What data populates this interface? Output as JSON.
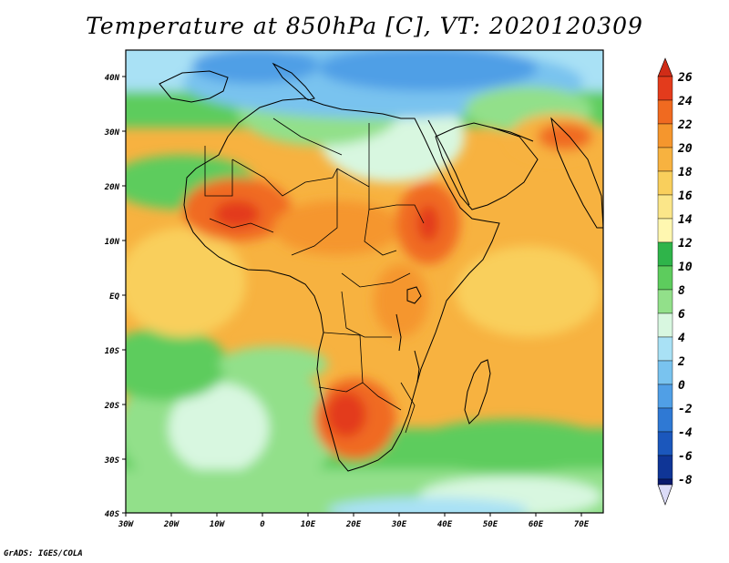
{
  "title": "Temperature at 850hPa [C], VT: 2020120309",
  "footer": "GrADS: IGES/COLA",
  "map": {
    "lon_range": [
      -30,
      75
    ],
    "lat_range": [
      -40,
      45
    ],
    "x_tick_labels": [
      "30W",
      "20W",
      "10W",
      "0",
      "10E",
      "20E",
      "30E",
      "40E",
      "50E",
      "60E",
      "70E"
    ],
    "y_tick_labels": [
      "40N",
      "30N",
      "20N",
      "10N",
      "EQ",
      "10S",
      "20S",
      "30S",
      "40S"
    ]
  },
  "colorbar": {
    "labels": [
      "26",
      "24",
      "22",
      "20",
      "18",
      "16",
      "14",
      "12",
      "10",
      "8",
      "6",
      "4",
      "2",
      "0",
      "-2",
      "-4",
      "-6",
      "-8"
    ],
    "colors": [
      "#e33b1c",
      "#f06a20",
      "#f5962d",
      "#f7b240",
      "#f9cf5c",
      "#fbe689",
      "#fff7b0",
      "#2fb44a",
      "#5dcc5d",
      "#92e08a",
      "#d8f7e0",
      "#a9e1f5",
      "#79c3ef",
      "#509fe6",
      "#2f79d4",
      "#1b57bc",
      "#0f3596",
      "#0a1a6e"
    ],
    "over_color": "#d02c17",
    "under_color": "#dcdcf8"
  },
  "palette": {
    "cold_deep": "#2f79d4",
    "cold": "#79c3ef",
    "cool": "#d8f7e0",
    "green": "#5dcc5d",
    "green_dark": "#2fb44a",
    "yellow": "#fbe689",
    "orange_light": "#f7b240",
    "orange": "#f5962d",
    "red": "#f06a20",
    "red_deep": "#e33b1c"
  }
}
